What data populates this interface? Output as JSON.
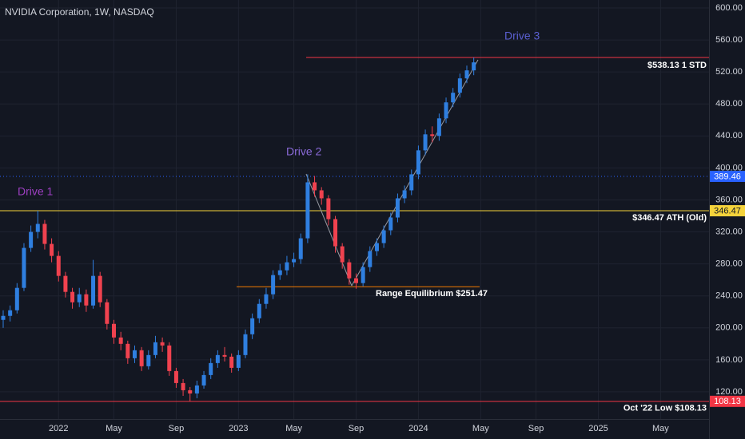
{
  "chart_data": {
    "type": "candlestick",
    "title": "NVIDIA Corporation, 1W, NASDAQ",
    "categories": [
      null,
      null,
      null,
      null,
      null,
      null,
      null,
      null,
      "2022",
      null,
      null,
      null,
      null,
      null,
      null,
      null,
      "May",
      null,
      null,
      null,
      null,
      null,
      null,
      null,
      null,
      "Sep",
      null,
      null,
      null,
      null,
      null,
      null,
      null,
      null,
      "2023",
      null,
      null,
      null,
      null,
      null,
      null,
      null,
      "May",
      null,
      null,
      null,
      null,
      null,
      null,
      null,
      null,
      "Sep",
      null,
      null,
      null,
      null,
      null,
      null,
      null,
      null,
      "2024",
      null,
      null,
      null,
      null,
      null,
      null,
      null,
      null,
      "May",
      null,
      null,
      null,
      null,
      null,
      null,
      null,
      "Sep",
      null,
      null,
      null,
      null,
      null,
      null,
      null,
      null,
      "2025",
      null,
      null,
      null,
      null,
      null,
      null,
      null,
      null,
      "May",
      null,
      null,
      null,
      null,
      null,
      null
    ],
    "open": [
      210,
      215,
      222,
      250,
      300,
      320,
      330,
      305,
      290,
      265,
      245,
      232,
      242,
      228,
      265,
      232,
      205,
      188,
      180,
      162,
      172,
      152,
      166,
      182,
      178,
      146,
      131,
      122,
      118,
      128,
      141,
      156,
      166,
      164,
      150,
      166,
      192,
      212,
      230,
      242,
      266,
      272,
      282,
      286,
      312,
      382,
      372,
      362,
      336,
      302,
      282,
      262,
      256,
      276,
      296,
      306,
      322,
      338,
      362,
      372,
      392,
      422,
      442,
      440,
      462,
      482,
      494,
      512,
      522,
      null,
      null,
      null,
      null,
      null,
      null,
      null,
      null,
      null,
      null,
      null,
      null,
      null,
      null,
      null,
      null,
      null,
      null,
      null,
      null,
      null,
      null,
      null,
      null,
      null,
      null,
      null,
      null,
      null,
      null,
      null,
      null,
      null
    ],
    "high": [
      222,
      228,
      256,
      306,
      328,
      346.47,
      335,
      312,
      296,
      270,
      250,
      250,
      248,
      285,
      270,
      236,
      210,
      195,
      184,
      178,
      176,
      172,
      190,
      188,
      182,
      150,
      136,
      126,
      134,
      146,
      162,
      172,
      176,
      168,
      172,
      198,
      218,
      236,
      250,
      272,
      280,
      290,
      294,
      318,
      392,
      390,
      376,
      366,
      340,
      306,
      286,
      268,
      282,
      302,
      312,
      328,
      344,
      368,
      378,
      398,
      428,
      448,
      452,
      468,
      488,
      500,
      518,
      528,
      538,
      null,
      null,
      null,
      null,
      null,
      null,
      null,
      null,
      null,
      null,
      null,
      null,
      null,
      null,
      null,
      null,
      null,
      null,
      null,
      null,
      null,
      null,
      null,
      null,
      null,
      null,
      null,
      null,
      null,
      null,
      null,
      null,
      null
    ],
    "low": [
      200,
      208,
      218,
      246,
      295,
      312,
      298,
      282,
      258,
      238,
      224,
      226,
      220,
      224,
      226,
      198,
      180,
      172,
      155,
      156,
      146,
      148,
      162,
      170,
      140,
      125,
      115,
      108.13,
      112,
      124,
      136,
      150,
      158,
      144,
      146,
      162,
      186,
      206,
      224,
      236,
      260,
      266,
      276,
      280,
      306,
      364,
      354,
      328,
      294,
      274,
      254,
      249,
      252,
      270,
      290,
      300,
      316,
      332,
      356,
      366,
      386,
      416,
      432,
      434,
      456,
      476,
      488,
      506,
      516,
      null,
      null,
      null,
      null,
      null,
      null,
      null,
      null,
      null,
      null,
      null,
      null,
      null,
      null,
      null,
      null,
      null,
      null,
      null,
      null,
      null,
      null,
      null,
      null,
      null,
      null,
      null,
      null,
      null,
      null,
      null,
      null,
      null
    ],
    "close": [
      215,
      222,
      250,
      300,
      320,
      330,
      305,
      290,
      265,
      245,
      232,
      242,
      228,
      265,
      232,
      205,
      188,
      180,
      162,
      172,
      152,
      166,
      182,
      178,
      146,
      131,
      122,
      118,
      128,
      141,
      156,
      166,
      164,
      150,
      166,
      192,
      212,
      230,
      242,
      266,
      272,
      282,
      286,
      312,
      382,
      372,
      362,
      336,
      302,
      282,
      262,
      256,
      276,
      296,
      306,
      322,
      338,
      362,
      372,
      392,
      422,
      442,
      440,
      462,
      482,
      494,
      512,
      522,
      532,
      null,
      null,
      null,
      null,
      null,
      null,
      null,
      null,
      null,
      null,
      null,
      null,
      null,
      null,
      null,
      null,
      null,
      null,
      null,
      null,
      null,
      null,
      null,
      null,
      null,
      null,
      null,
      null,
      null,
      null,
      null,
      null,
      null
    ],
    "up_color": "#2f7fe0",
    "down_color": "#f0424f",
    "ylim": [
      86,
      610
    ],
    "yticks": [
      {
        "value": 120,
        "label": "120.00"
      },
      {
        "value": 160,
        "label": "160.00"
      },
      {
        "value": 200,
        "label": "200.00"
      },
      {
        "value": 240,
        "label": "240.00"
      },
      {
        "value": 280,
        "label": "280.00"
      },
      {
        "value": 320,
        "label": "320.00"
      },
      {
        "value": 360,
        "label": "360.00"
      },
      {
        "value": 400,
        "label": "400.00"
      },
      {
        "value": 440,
        "label": "440.00"
      },
      {
        "value": 480,
        "label": "480.00"
      },
      {
        "value": 520,
        "label": "520.00"
      },
      {
        "value": 560,
        "label": "560.00"
      },
      {
        "value": 600,
        "label": "600.00"
      }
    ],
    "grid": true,
    "levels": [
      {
        "value": 538.13,
        "label": "$538.13 1 STD",
        "color": "#f23645",
        "style": "solid",
        "badge": false
      },
      {
        "value": 389.46,
        "color": "#2962ff",
        "style": "dotted",
        "badge": true
      },
      {
        "value": 346.47,
        "label": "$346.47 ATH (Old)",
        "color": "#f5d33b",
        "style": "solid",
        "badge": true
      },
      {
        "value": 251.47,
        "label": "Range Equilibrium $251.47",
        "color": "#f57c00",
        "style": "solid",
        "badge": false
      },
      {
        "value": 108.13,
        "label": "Oct '22 Low $108.13",
        "color": "#f23645",
        "style": "solid",
        "badge": true
      }
    ],
    "annotations": [
      {
        "text": "Drive 1",
        "color": "#9c3fc0"
      },
      {
        "text": "Drive 2",
        "color": "#8a6ad8"
      },
      {
        "text": "Drive 3",
        "color": "#5a5fd0"
      }
    ]
  }
}
